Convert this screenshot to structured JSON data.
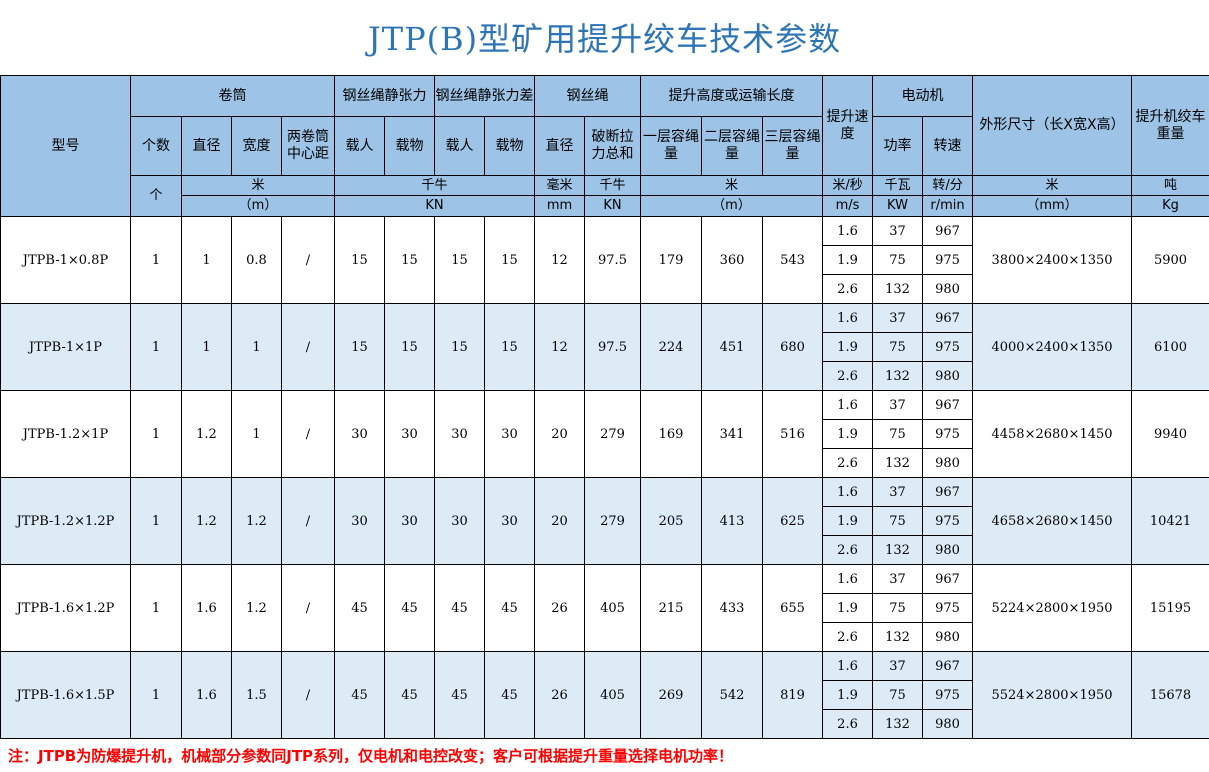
{
  "title": "JTP(B)型矿用提升绞车技术参数",
  "header": {
    "model": "型号",
    "drum": "卷筒",
    "rope_tension": "钢丝绳静张力",
    "rope_tension_diff": "钢丝绳静张力差",
    "rope": "钢丝绳",
    "height": "提升高度或运输长度",
    "speed": "提升速度",
    "motor": "电动机",
    "dims": "外形尺寸（长X宽X高）",
    "weight": "提升机绞车重量",
    "count": "个数",
    "diameter": "直径",
    "width": "宽度",
    "center": "两卷筒中心距",
    "person1": "载人",
    "load1": "载物",
    "person2": "载人",
    "load2": "载物",
    "rope_dia": "直径",
    "break": "破断拉力总和",
    "layer1": "一层容绳量",
    "layer2": "二层容绳量",
    "layer3": "三层容绳量",
    "power": "功率",
    "rpm": "转速",
    "u_count": "个",
    "u_m": "米",
    "u_m_en": "（m）",
    "u_kn": "千牛",
    "u_kn_en": "KN",
    "u_mm": "毫米",
    "u_mm_en": "mm",
    "u_kn2": "千牛",
    "u_kn2_en": "KN",
    "u_h": "米",
    "u_h_en": "（m）",
    "u_speed": "米/秒",
    "u_speed_en": "m/s",
    "u_kw": "千瓦",
    "u_kw_en": "KW",
    "u_rpm": "转/分",
    "u_rpm_en": "r/min",
    "u_dim": "米",
    "u_dim_en": "（mm）",
    "u_w": "吨",
    "u_w_en": "Kg"
  },
  "rows": [
    {
      "model": "JTPB-1×0.8P",
      "count": "1",
      "diameter": "1",
      "width": "0.8",
      "center": "/",
      "p1": "15",
      "l1": "15",
      "p2": "15",
      "l2": "15",
      "rope_dia": "12",
      "break": "97.5",
      "layer1": "179",
      "layer2": "360",
      "layer3": "543",
      "dims": "3800×2400×1350",
      "weight": "5900",
      "motor": [
        [
          "1.6",
          "37",
          "967"
        ],
        [
          "1.9",
          "75",
          "975"
        ],
        [
          "2.6",
          "132",
          "980"
        ]
      ]
    },
    {
      "model": "JTPB-1×1P",
      "count": "1",
      "diameter": "1",
      "width": "1",
      "center": "/",
      "p1": "15",
      "l1": "15",
      "p2": "15",
      "l2": "15",
      "rope_dia": "12",
      "break": "97.5",
      "layer1": "224",
      "layer2": "451",
      "layer3": "680",
      "dims": "4000×2400×1350",
      "weight": "6100",
      "motor": [
        [
          "1.6",
          "37",
          "967"
        ],
        [
          "1.9",
          "75",
          "975"
        ],
        [
          "2.6",
          "132",
          "980"
        ]
      ]
    },
    {
      "model": "JTPB-1.2×1P",
      "count": "1",
      "diameter": "1.2",
      "width": "1",
      "center": "/",
      "p1": "30",
      "l1": "30",
      "p2": "30",
      "l2": "30",
      "rope_dia": "20",
      "break": "279",
      "layer1": "169",
      "layer2": "341",
      "layer3": "516",
      "dims": "4458×2680×1450",
      "weight": "9940",
      "motor": [
        [
          "1.6",
          "37",
          "967"
        ],
        [
          "1.9",
          "75",
          "975"
        ],
        [
          "2.6",
          "132",
          "980"
        ]
      ]
    },
    {
      "model": "JTPB-1.2×1.2P",
      "count": "1",
      "diameter": "1.2",
      "width": "1.2",
      "center": "/",
      "p1": "30",
      "l1": "30",
      "p2": "30",
      "l2": "30",
      "rope_dia": "20",
      "break": "279",
      "layer1": "205",
      "layer2": "413",
      "layer3": "625",
      "dims": "4658×2680×1450",
      "weight": "10421",
      "motor": [
        [
          "1.6",
          "37",
          "967"
        ],
        [
          "1.9",
          "75",
          "975"
        ],
        [
          "2.6",
          "132",
          "980"
        ]
      ]
    },
    {
      "model": "JTPB-1.6×1.2P",
      "count": "1",
      "diameter": "1.6",
      "width": "1.2",
      "center": "/",
      "p1": "45",
      "l1": "45",
      "p2": "45",
      "l2": "45",
      "rope_dia": "26",
      "break": "405",
      "layer1": "215",
      "layer2": "433",
      "layer3": "655",
      "dims": "5224×2800×1950",
      "weight": "15195",
      "motor": [
        [
          "1.6",
          "37",
          "967"
        ],
        [
          "1.9",
          "75",
          "975"
        ],
        [
          "2.6",
          "132",
          "980"
        ]
      ]
    },
    {
      "model": "JTPB-1.6×1.5P",
      "count": "1",
      "diameter": "1.6",
      "width": "1.5",
      "center": "/",
      "p1": "45",
      "l1": "45",
      "p2": "45",
      "l2": "45",
      "rope_dia": "26",
      "break": "405",
      "layer1": "269",
      "layer2": "542",
      "layer3": "819",
      "dims": "5524×2800×1950",
      "weight": "15678",
      "motor": [
        [
          "1.6",
          "37",
          "967"
        ],
        [
          "1.9",
          "75",
          "975"
        ],
        [
          "2.6",
          "132",
          "980"
        ]
      ]
    }
  ],
  "note": "注：JTPB为防爆提升机，机械部分参数同JTP系列，仅电机和电控改变；客户可根据提升重量选择电机功率！",
  "colors": {
    "header_bg": "#9dc3e6",
    "alt_row": "#ddebf7",
    "title": "#2e75b6",
    "note": "#ff0000"
  }
}
